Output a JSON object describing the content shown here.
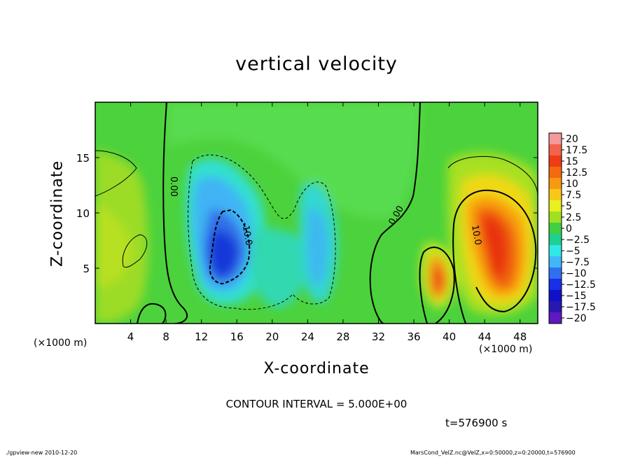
{
  "chart_data": {
    "type": "heatmap",
    "title": "vertical velocity",
    "xlabel": "X-coordinate",
    "ylabel": "Z-coordinate",
    "x_unit_note": "(×1000 m)",
    "x_unit_note_right": "(×1000 m)",
    "xlim": [
      0,
      50
    ],
    "ylim": [
      0,
      20
    ],
    "x_ticks": [
      4,
      8,
      12,
      16,
      20,
      24,
      28,
      32,
      36,
      40,
      44,
      48
    ],
    "y_ticks": [
      5,
      10,
      15
    ],
    "colorbar": {
      "labels": [
        "20",
        "17.5",
        "15",
        "12.5",
        "10",
        "7.5",
        "5",
        "2.5",
        "0",
        "-2.5",
        "-5",
        "-7.5",
        "-10",
        "-12.5",
        "-15",
        "-17.5",
        "-20"
      ],
      "colors": [
        "#f49a9a",
        "#f2624c",
        "#f03c16",
        "#f46a10",
        "#f89a10",
        "#f8c818",
        "#e8f020",
        "#a0e020",
        "#40d040",
        "#20d090",
        "#30e8e8",
        "#40b8f8",
        "#3070f0",
        "#1830e8",
        "#1010c8",
        "#2818b0",
        "#6018c0"
      ]
    },
    "contour_labels": [
      "0.00",
      "0.00",
      "-10.0",
      "10.0"
    ],
    "contour_interval": "CONTOUR INTERVAL = 5.000E+00",
    "time": "t=576900 s"
  },
  "footer": {
    "left": "./gpview-new  2010-12-20",
    "right": "MarsCond_VelZ.nc@VelZ,x=0:50000,z=0:20000,t=576900"
  }
}
